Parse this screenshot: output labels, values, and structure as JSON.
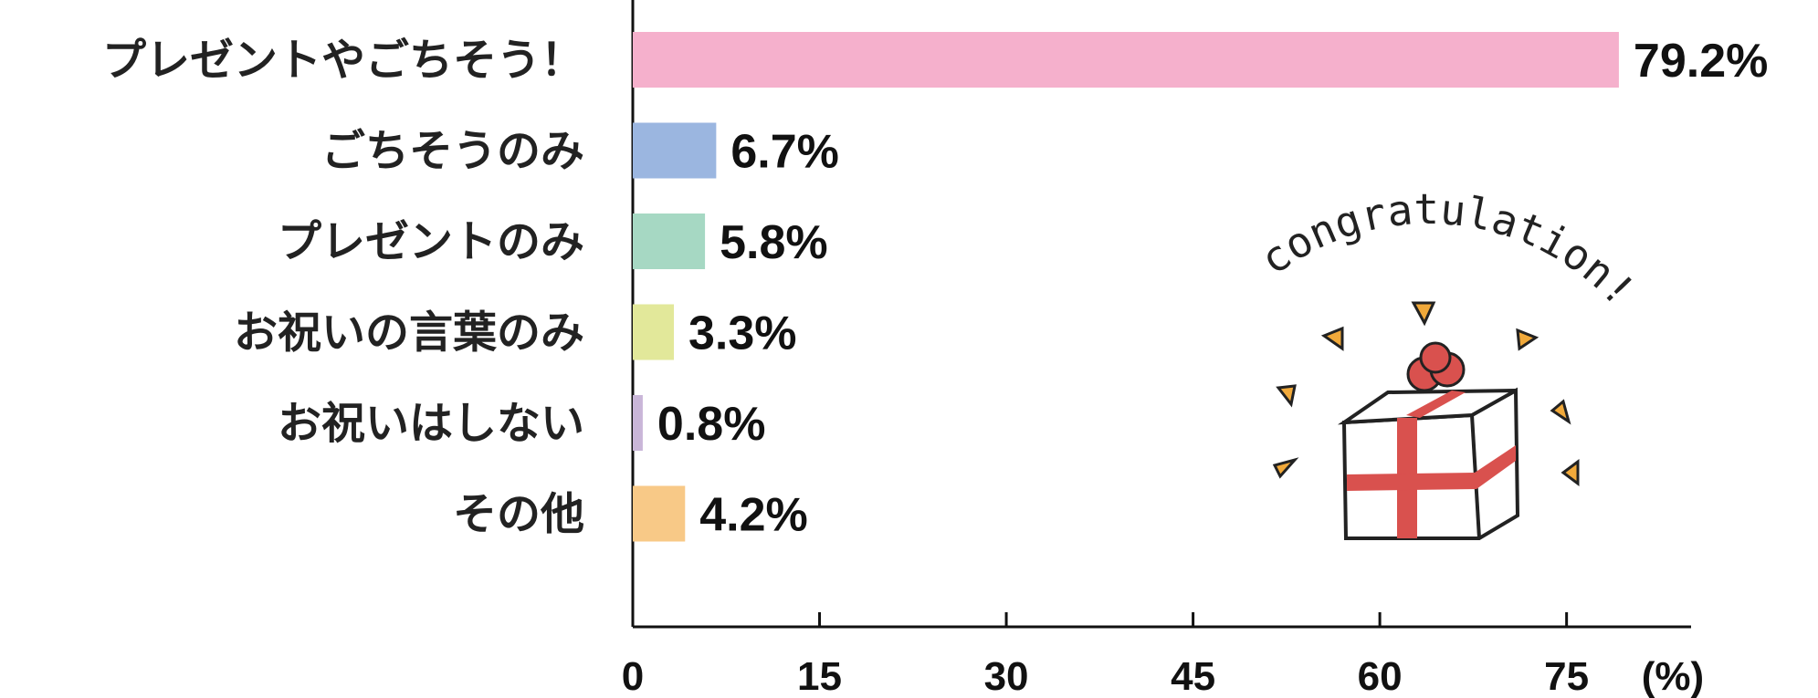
{
  "chart_data": {
    "type": "hbar",
    "categories": [
      "プレゼントやごちそう！",
      "ごちそうのみ",
      "プレゼントのみ",
      "お祝いの言葉のみ",
      "お祝いはしない",
      "その他"
    ],
    "values": [
      79.2,
      6.7,
      5.8,
      3.3,
      0.8,
      4.2
    ],
    "value_labels": [
      "79.2%",
      "6.7%",
      "5.8%",
      "3.3%",
      "0.8%",
      "4.2%"
    ],
    "colors": [
      "#f5b0cc",
      "#9bb6e0",
      "#a6d8c3",
      "#e2e89a",
      "#c9b6d8",
      "#f8c987"
    ],
    "xlim": [
      0,
      85
    ],
    "xticks": [
      0,
      15,
      30,
      45,
      60,
      75
    ],
    "x_unit": "(%)",
    "annotation": "congratulation!"
  }
}
